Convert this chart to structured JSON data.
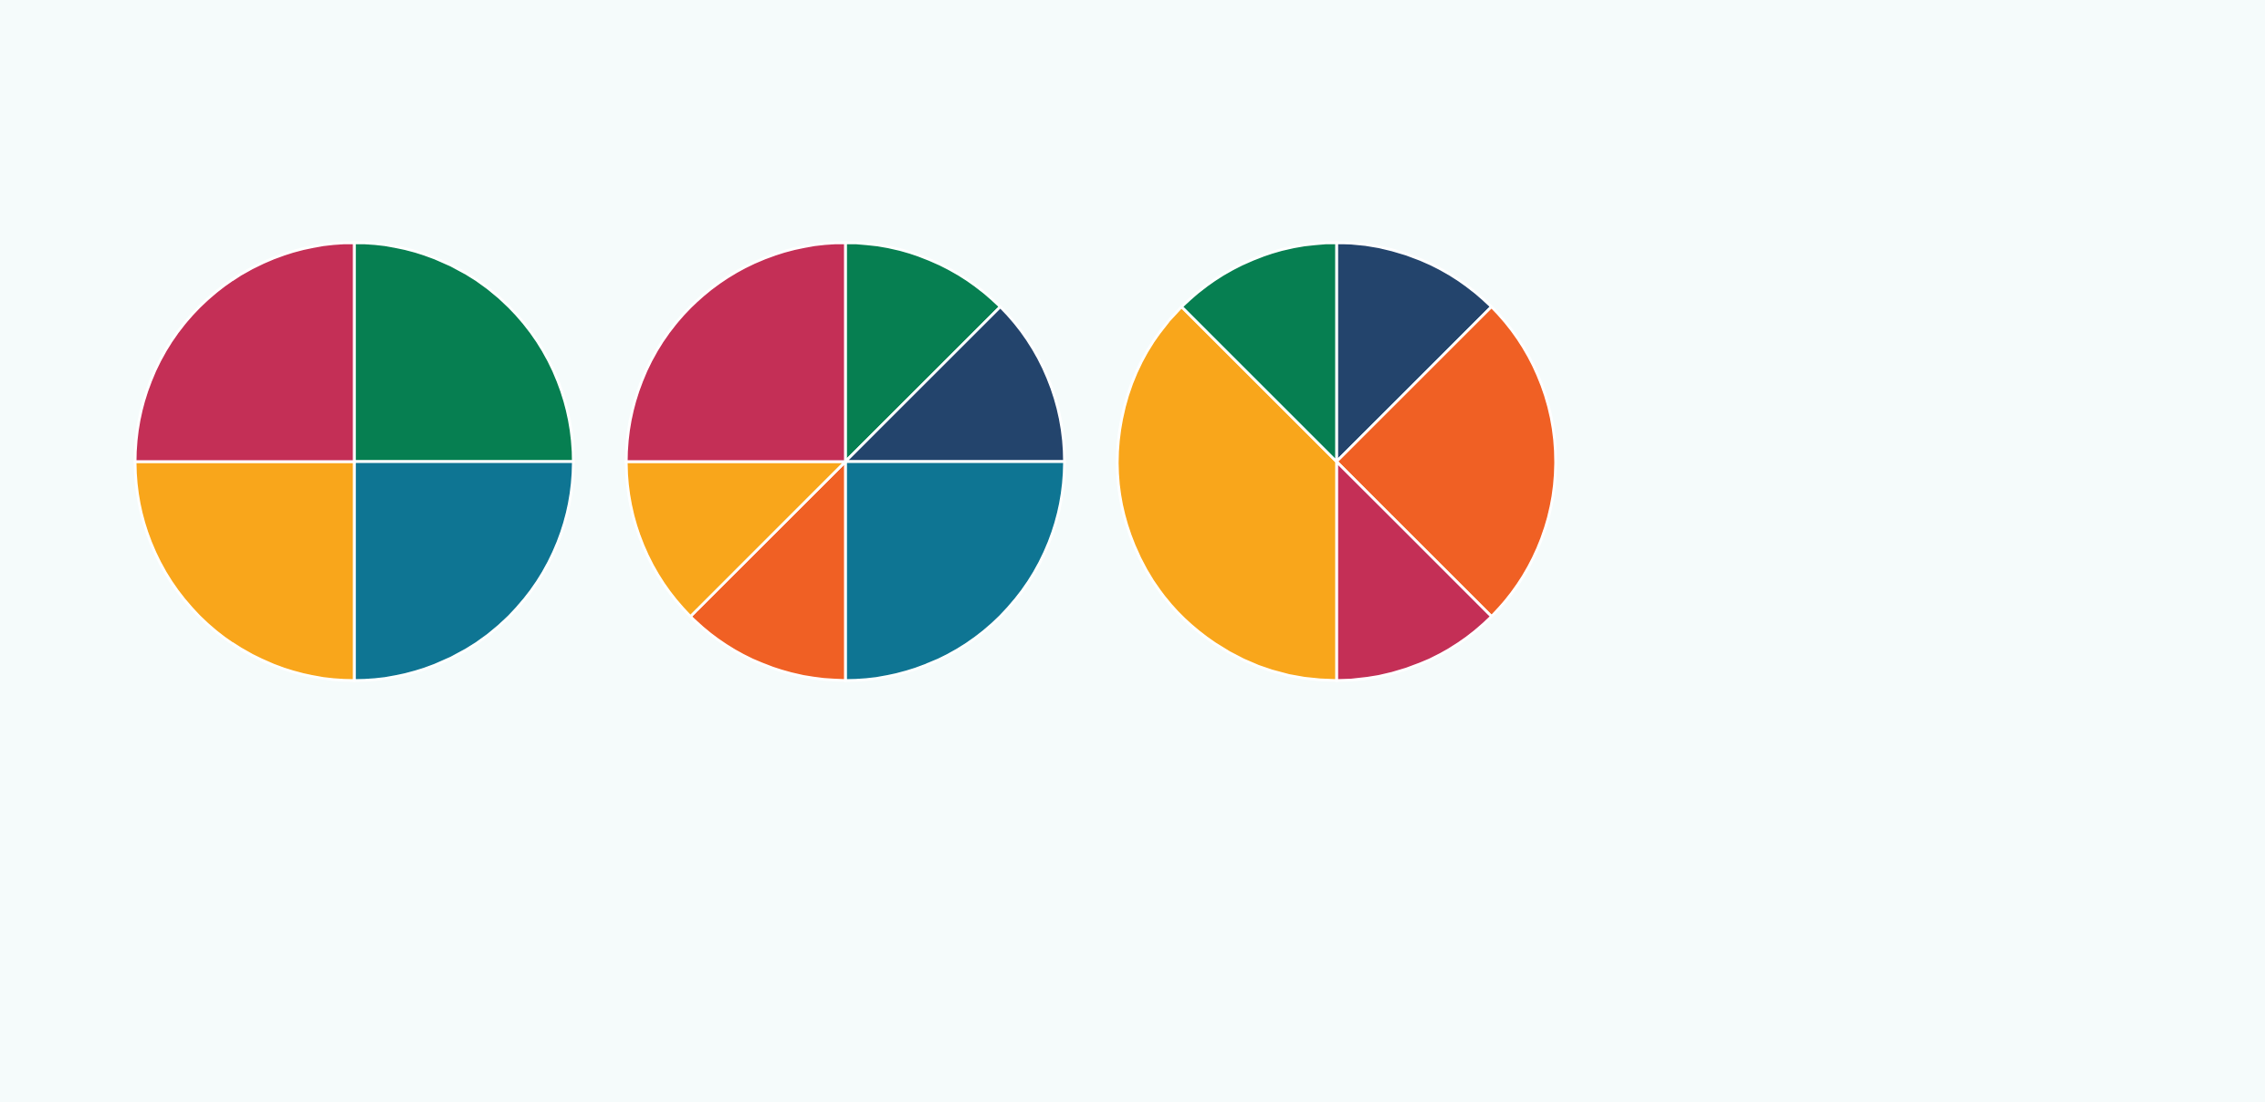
{
  "chart_data": [
    {
      "type": "pie",
      "categories": [
        null,
        null,
        null,
        null
      ],
      "values": [
        25,
        25,
        25,
        25
      ],
      "colors": [
        "#067f51",
        "#0e7593",
        "#f9a61b",
        "#c42f56"
      ]
    },
    {
      "type": "pie",
      "categories": [
        null,
        null,
        null,
        null,
        null,
        null
      ],
      "values": [
        12.5,
        12.5,
        25,
        12.5,
        12.5,
        25
      ],
      "colors": [
        "#067f51",
        "#23446c",
        "#0e7593",
        "#f06024",
        "#f9a61b",
        "#c42f56"
      ]
    },
    {
      "type": "pie",
      "categories": [
        null,
        null,
        null,
        null,
        null
      ],
      "values": [
        12.5,
        25,
        12.5,
        37.5,
        12.5
      ],
      "colors": [
        "#23446c",
        "#f06024",
        "#c42f56",
        "#f9a61b",
        "#067f51"
      ]
    }
  ]
}
